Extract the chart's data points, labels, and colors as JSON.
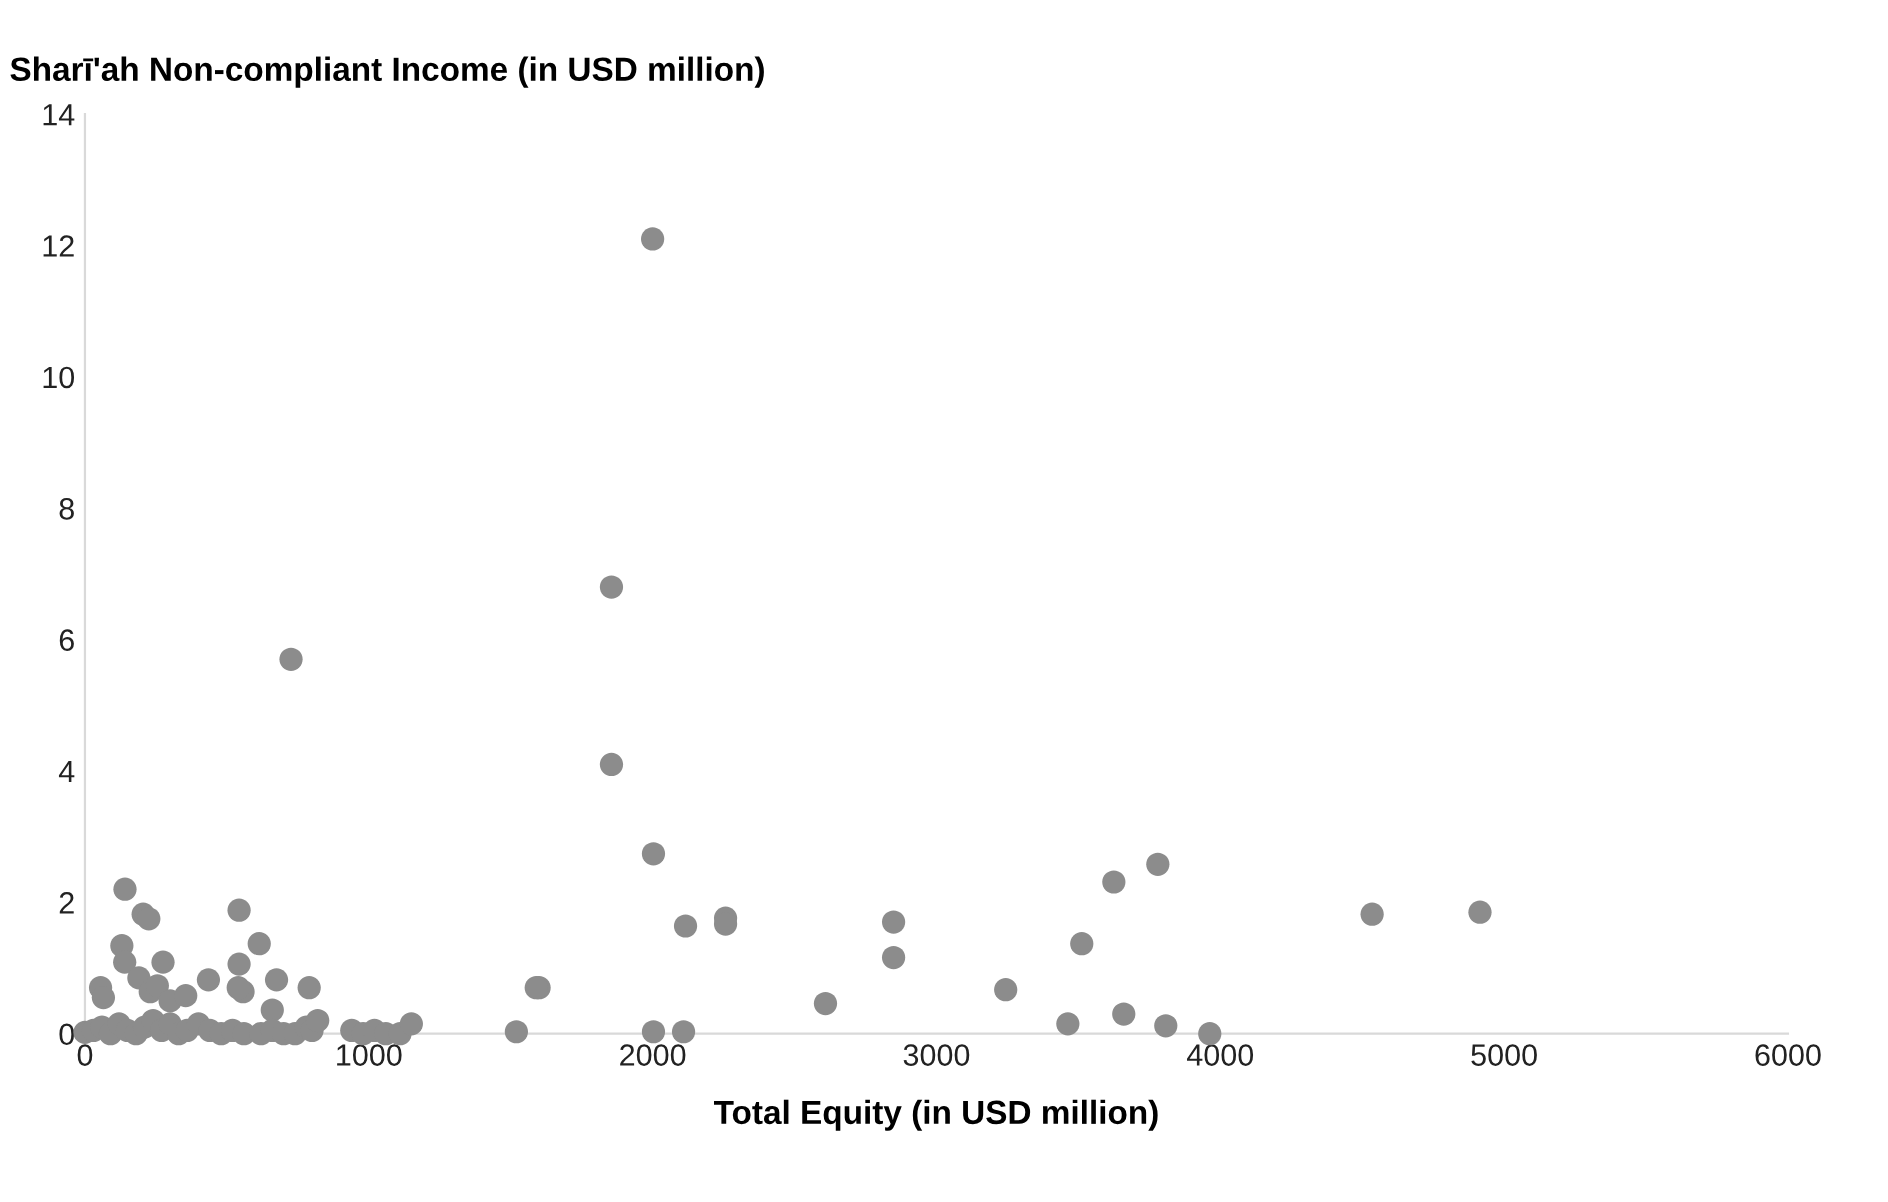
{
  "chart_data": {
    "type": "scatter",
    "ylabel": "Sharīʹah Non-compliant Income (in USD million)",
    "xlabel": "Total Equity (in USD million)",
    "xlim": [
      0,
      6000
    ],
    "xticks": [
      0,
      1000,
      2000,
      3000,
      4000,
      5000,
      6000
    ],
    "ylim": [
      0,
      14
    ],
    "yticks": [
      0,
      2,
      4,
      6,
      8,
      10,
      12,
      14
    ],
    "grid": false,
    "legend": false,
    "marker": "circle",
    "series": [
      {
        "color": "#8c8c8c",
        "x": [
          2000,
          1855,
          1855,
          726,
          2003,
          2116,
          2257,
          2257,
          2003,
          2109,
          1600,
          2609,
          2849,
          2849,
          3244,
          3512,
          3625,
          3463,
          3660,
          3780,
          3808,
          3963,
          4535,
          4915,
          141,
          205,
          225,
          130,
          140,
          275,
          190,
          55,
          65,
          543,
          543,
          557,
          614,
          660,
          230,
          255,
          300,
          355,
          435,
          540,
          675,
          790,
          1590,
          1520,
          0,
          30,
          60,
          90,
          120,
          150,
          180,
          210,
          240,
          270,
          300,
          330,
          360,
          400,
          440,
          480,
          520,
          560,
          620,
          660,
          700,
          740,
          780,
          800,
          820,
          940,
          980,
          1020,
          1060,
          1110,
          1150
        ],
        "values": [
          12.1,
          6.8,
          4.1,
          5.7,
          2.74,
          1.64,
          1.76,
          1.67,
          0.03,
          0.03,
          0.7,
          0.46,
          1.7,
          1.16,
          0.67,
          1.37,
          2.31,
          0.15,
          0.3,
          2.58,
          0.12,
          0.0,
          1.82,
          1.85,
          2.2,
          1.82,
          1.75,
          1.34,
          1.09,
          1.09,
          0.85,
          0.7,
          0.55,
          1.88,
          1.06,
          0.64,
          1.37,
          0.36,
          0.64,
          0.73,
          0.5,
          0.58,
          0.82,
          0.7,
          0.82,
          0.7,
          0.7,
          0.03,
          0.02,
          0.05,
          0.1,
          0.0,
          0.15,
          0.05,
          0.0,
          0.1,
          0.2,
          0.05,
          0.15,
          0.0,
          0.05,
          0.15,
          0.05,
          0.0,
          0.05,
          0.0,
          0.0,
          0.05,
          0.0,
          0.0,
          0.1,
          0.05,
          0.2,
          0.05,
          0.0,
          0.05,
          0.0,
          0.0,
          0.15
        ]
      }
    ]
  }
}
